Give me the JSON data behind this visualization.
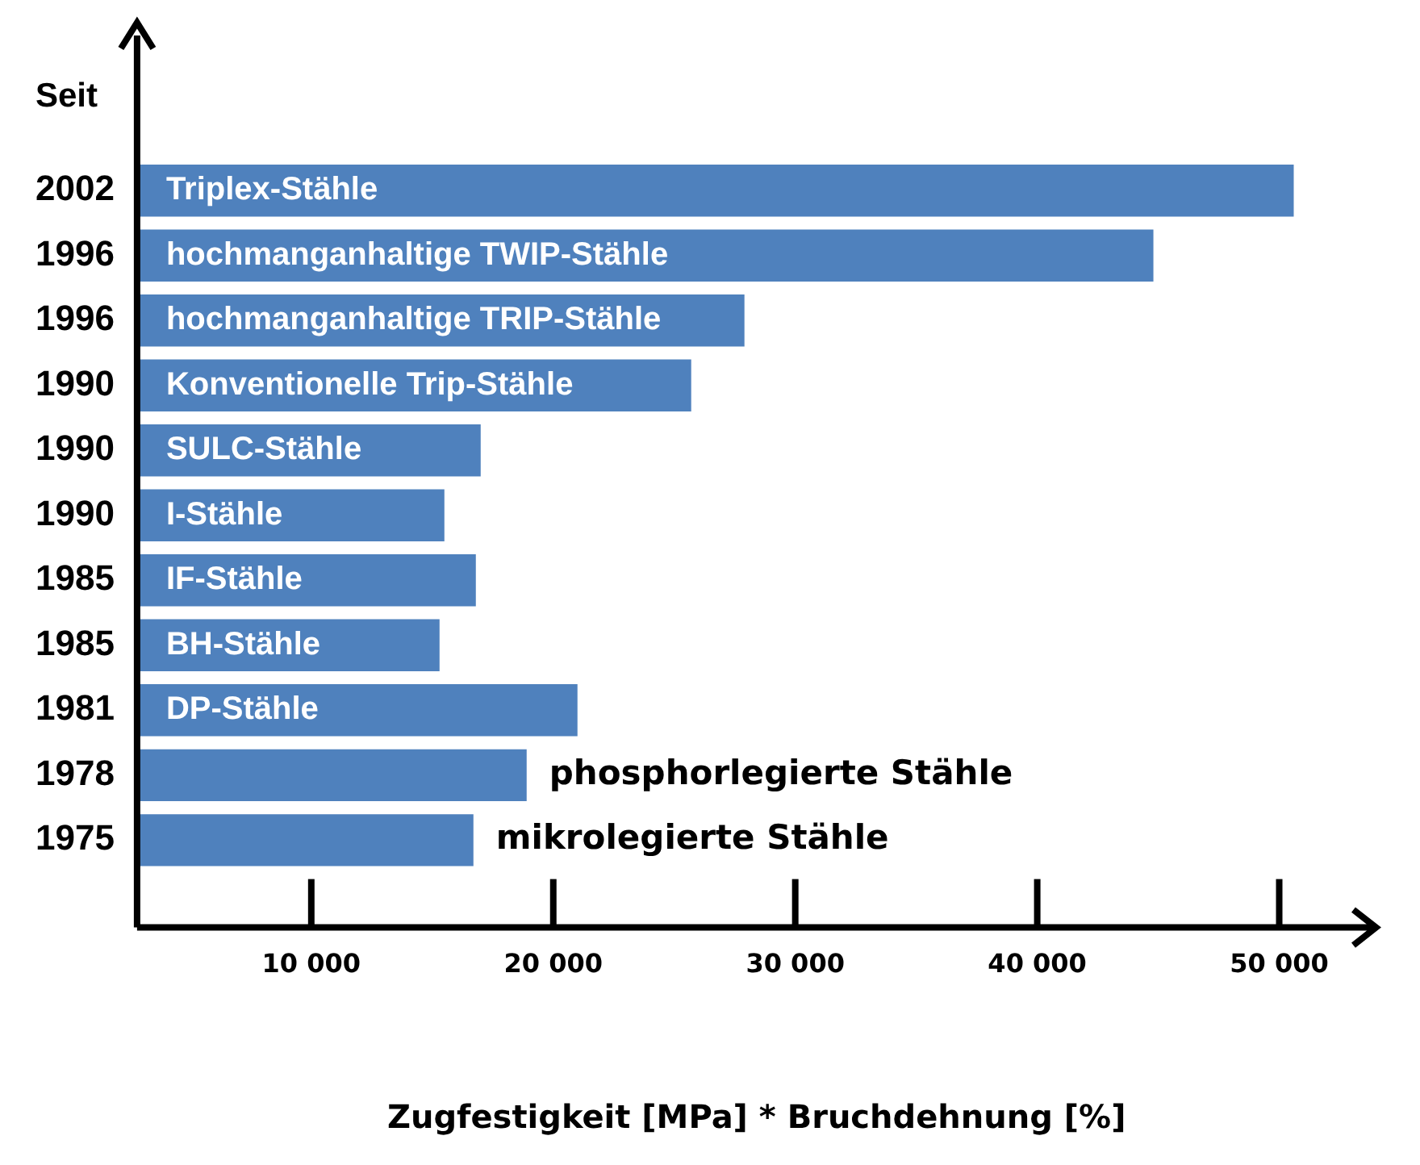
{
  "chart_data": {
    "type": "bar",
    "orientation": "horizontal",
    "ylabel": "Seit",
    "xlabel": "Zugfestigkeit [MPa] * Bruchdehnung [%]",
    "categories": [
      "2002",
      "1996",
      "1996",
      "1990",
      "1990",
      "1990",
      "1985",
      "1985",
      "1981",
      "1978",
      "1975"
    ],
    "values": [
      50600,
      44800,
      27900,
      25700,
      17000,
      15500,
      16800,
      15300,
      21000,
      18900,
      16700
    ],
    "value_labels": [
      "Triplex-Stähle",
      "hochmanganhaltige TWIP-Stähle",
      "hochmanganhaltige TRIP-Stähle",
      "Konventionelle Trip-Stähle",
      "SULC-Stähle",
      "I-Stähle",
      "IF-Stähle",
      "BH-Stähle",
      "DP-Stähle",
      "phosphorlegierte Stähle",
      "mikrolegierte Stähle"
    ],
    "color": "#4f81bd",
    "xlim": [
      2800,
      54000
    ],
    "xticks": [
      {
        "value": 10000,
        "label": "10 000"
      },
      {
        "value": 20000,
        "label": "20 000"
      },
      {
        "value": 30000,
        "label": "30 000"
      },
      {
        "value": 40000,
        "label": "40 000"
      },
      {
        "value": 50000,
        "label": "50 000"
      }
    ],
    "grid": false,
    "legend": false
  }
}
